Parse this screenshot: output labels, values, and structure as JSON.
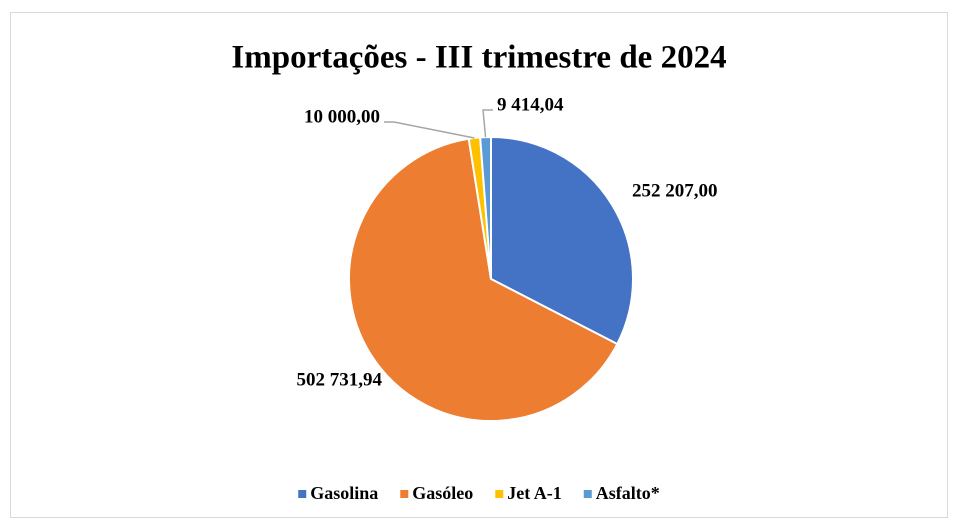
{
  "chart_data": {
    "type": "pie",
    "title": "Importações - III trimestre de 2024",
    "categories": [
      "Gasolina",
      "Gasóleo",
      "Jet A-1",
      "Asfalto*"
    ],
    "values": [
      252207,
      502731.94,
      10000,
      9414.04
    ],
    "value_labels": [
      "252 207,00",
      "502 731,94",
      "10 000,00",
      "9 414,04"
    ],
    "colors": [
      "#4472c4",
      "#ed7d31",
      "#ffc000",
      "#5b9bd5"
    ],
    "legend": "bottom"
  }
}
